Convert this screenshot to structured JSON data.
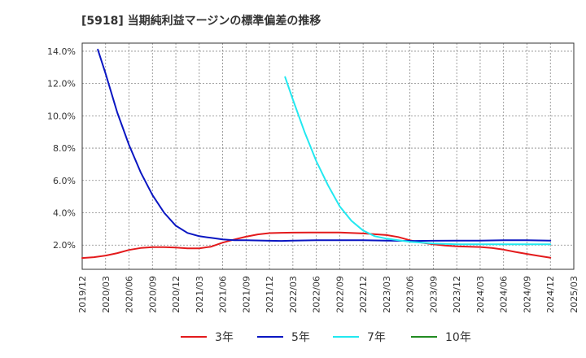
{
  "chart_data": {
    "type": "line",
    "title": "[5918]  当期純利益マージンの標準偏差の推移",
    "xlabel": "",
    "ylabel": "",
    "ylim": [
      0.5,
      14.5
    ],
    "yticks": [
      2.0,
      4.0,
      6.0,
      8.0,
      10.0,
      12.0,
      14.0
    ],
    "ytick_labels": [
      "2.0%",
      "4.0%",
      "6.0%",
      "8.0%",
      "10.0%",
      "12.0%",
      "14.0%"
    ],
    "x_categories": [
      "2019/12",
      "2020/03",
      "2020/06",
      "2020/09",
      "2020/12",
      "2021/03",
      "2021/06",
      "2021/09",
      "2021/12",
      "2022/03",
      "2022/06",
      "2022/09",
      "2022/12",
      "2023/03",
      "2023/06",
      "2023/09",
      "2023/12",
      "2024/03",
      "2024/06",
      "2024/09",
      "2024/12",
      "2025/03"
    ],
    "grid": true,
    "legend_position": "bottom",
    "series": [
      {
        "name": "3年",
        "color": "#e31a1c",
        "points": [
          [
            0,
            1.2
          ],
          [
            0.5,
            1.25
          ],
          [
            1,
            1.35
          ],
          [
            1.5,
            1.5
          ],
          [
            2,
            1.7
          ],
          [
            2.5,
            1.82
          ],
          [
            3,
            1.87
          ],
          [
            3.5,
            1.87
          ],
          [
            4,
            1.85
          ],
          [
            4.5,
            1.8
          ],
          [
            5,
            1.8
          ],
          [
            5.5,
            1.9
          ],
          [
            6,
            2.15
          ],
          [
            6.5,
            2.35
          ],
          [
            7,
            2.52
          ],
          [
            7.5,
            2.66
          ],
          [
            8,
            2.74
          ],
          [
            8.5,
            2.76
          ],
          [
            9,
            2.77
          ],
          [
            10,
            2.78
          ],
          [
            11,
            2.78
          ],
          [
            12,
            2.72
          ],
          [
            13,
            2.62
          ],
          [
            13.5,
            2.5
          ],
          [
            14,
            2.3
          ],
          [
            14.5,
            2.15
          ],
          [
            15,
            2.05
          ],
          [
            15.5,
            1.97
          ],
          [
            16,
            1.92
          ],
          [
            17,
            1.88
          ],
          [
            17.5,
            1.82
          ],
          [
            18,
            1.72
          ],
          [
            18.5,
            1.58
          ],
          [
            19,
            1.45
          ],
          [
            19.5,
            1.33
          ],
          [
            20,
            1.22
          ]
        ]
      },
      {
        "name": "5年",
        "color": "#0a16c2",
        "points": [
          [
            0.667,
            14.1
          ],
          [
            1,
            12.6
          ],
          [
            1.5,
            10.2
          ],
          [
            2,
            8.2
          ],
          [
            2.5,
            6.5
          ],
          [
            3,
            5.1
          ],
          [
            3.5,
            4.0
          ],
          [
            4,
            3.2
          ],
          [
            4.5,
            2.75
          ],
          [
            5,
            2.55
          ],
          [
            5.5,
            2.45
          ],
          [
            6,
            2.35
          ],
          [
            6.5,
            2.3
          ],
          [
            7,
            2.3
          ],
          [
            8,
            2.27
          ],
          [
            8.5,
            2.26
          ],
          [
            9,
            2.28
          ],
          [
            10,
            2.3
          ],
          [
            11,
            2.3
          ],
          [
            12,
            2.3
          ],
          [
            13,
            2.28
          ],
          [
            14,
            2.26
          ],
          [
            15,
            2.27
          ],
          [
            16,
            2.28
          ],
          [
            17,
            2.28
          ],
          [
            18,
            2.3
          ],
          [
            19,
            2.3
          ],
          [
            20,
            2.28
          ]
        ]
      },
      {
        "name": "7年",
        "color": "#22e8f0",
        "points": [
          [
            8.667,
            12.4
          ],
          [
            9,
            11.0
          ],
          [
            9.5,
            9.0
          ],
          [
            10,
            7.2
          ],
          [
            10.5,
            5.7
          ],
          [
            11,
            4.4
          ],
          [
            11.5,
            3.5
          ],
          [
            12,
            2.9
          ],
          [
            12.5,
            2.55
          ],
          [
            13,
            2.4
          ],
          [
            13.5,
            2.3
          ],
          [
            14,
            2.2
          ],
          [
            15,
            2.1
          ],
          [
            16,
            2.05
          ],
          [
            17,
            2.05
          ],
          [
            18,
            2.05
          ],
          [
            19,
            2.05
          ],
          [
            20,
            2.05
          ]
        ]
      },
      {
        "name": "10年",
        "color": "#228b22",
        "points": []
      }
    ]
  }
}
